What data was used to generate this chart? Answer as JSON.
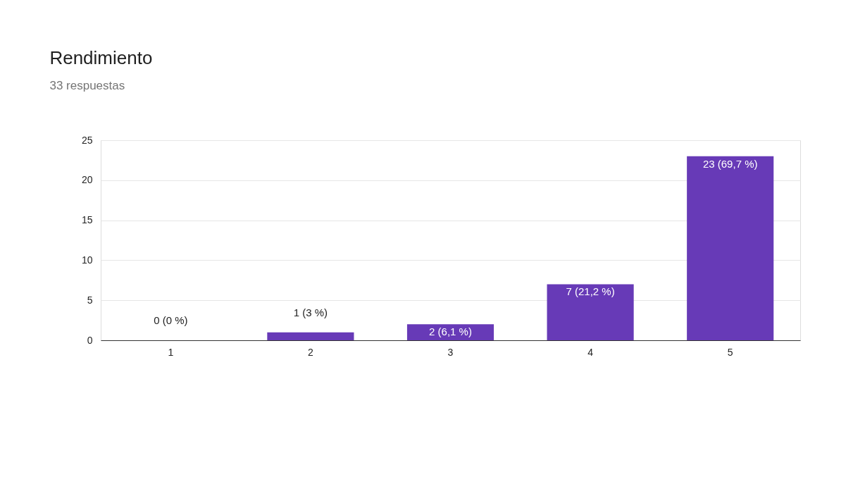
{
  "chart_data": {
    "type": "bar",
    "title": "Rendimiento",
    "subtitle": "33 respuestas",
    "categories": [
      "1",
      "2",
      "3",
      "4",
      "5"
    ],
    "values": [
      0,
      1,
      2,
      7,
      23
    ],
    "value_labels": [
      "0 (0 %)",
      "1 (3 %)",
      "2 (6,1 %)",
      "7 (21,2 %)",
      "23 (69,7 %)"
    ],
    "color": "#673ab7",
    "ylim": [
      0,
      25
    ],
    "yticks": [
      0,
      5,
      10,
      15,
      20,
      25
    ],
    "grid": "y"
  }
}
